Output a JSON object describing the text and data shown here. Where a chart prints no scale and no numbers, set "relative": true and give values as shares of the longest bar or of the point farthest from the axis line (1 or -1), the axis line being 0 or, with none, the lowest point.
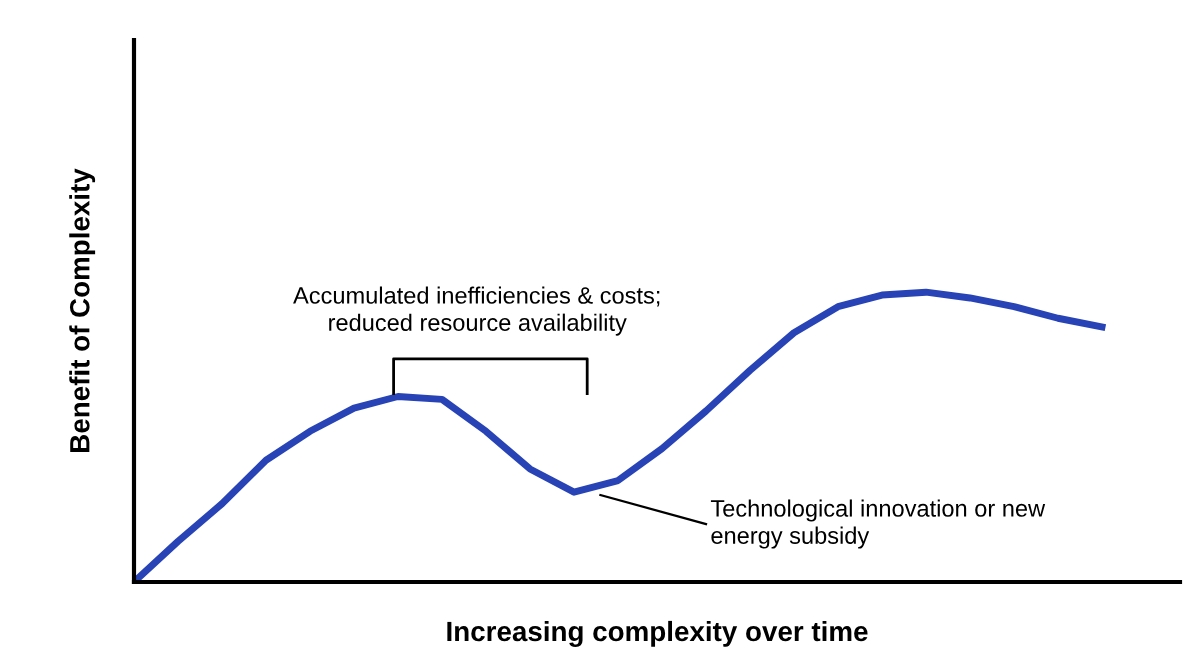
{
  "chart_data": {
    "type": "line",
    "relative": true,
    "xlabel": "Increasing complexity over time",
    "ylabel": "Benefit of Complexity",
    "categories": [
      null,
      null,
      null,
      null,
      null,
      null,
      null,
      null,
      null,
      null,
      null,
      null,
      null,
      null,
      null,
      null,
      null,
      null,
      null,
      null,
      null,
      null,
      null
    ],
    "series": [
      {
        "color": "#2743b5",
        "values": [
          0,
          0.14,
          0.27,
          0.42,
          0.52,
          0.6,
          0.64,
          0.63,
          0.52,
          0.39,
          0.31,
          0.35,
          0.46,
          0.59,
          0.73,
          0.86,
          0.95,
          0.99,
          1.0,
          0.98,
          0.95,
          0.91,
          0.88
        ]
      }
    ],
    "annotations": [
      "Accumulated inefficiencies & costs;\nreduced resource availability",
      "Technological innovation or new\nenergy subsidy"
    ],
    "legend": false,
    "tick_labels": false,
    "marker": "none",
    "line_style": "solid"
  }
}
